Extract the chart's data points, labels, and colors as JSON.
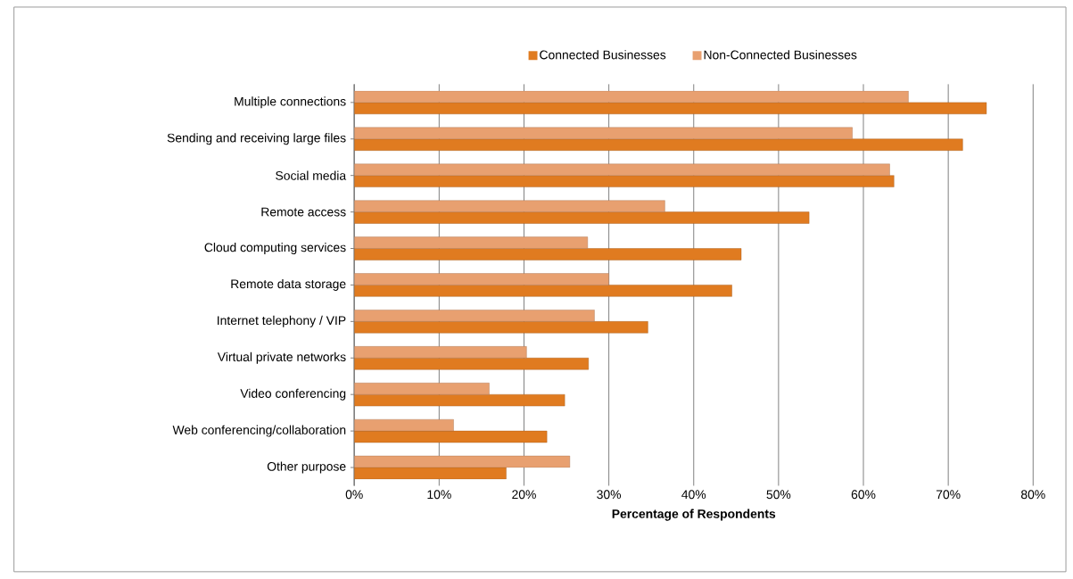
{
  "chart_data": {
    "type": "bar",
    "orientation": "horizontal",
    "categories": [
      "Multiple connections",
      "Sending and receiving large files",
      "Social media",
      "Remote access",
      "Cloud computing services",
      "Remote data storage",
      "Internet telephony / VIP",
      "Virtual private networks",
      "Video conferencing",
      "Web conferencing/collaboration",
      "Other purpose"
    ],
    "series": [
      {
        "name": "Connected Businesses",
        "color": "#e07b20",
        "values": [
          74.5,
          71.7,
          63.6,
          53.6,
          45.6,
          44.5,
          34.6,
          27.6,
          24.8,
          22.7,
          17.9
        ]
      },
      {
        "name": "Non-Connected Businesses",
        "color": "#e8a070",
        "values": [
          65.3,
          58.7,
          63.1,
          36.6,
          27.5,
          30.0,
          28.3,
          20.3,
          15.9,
          11.7,
          25.4
        ]
      }
    ],
    "xlabel": "Percentage of Respondents",
    "xlim": [
      0,
      80
    ],
    "xticks": [
      {
        "value": 0,
        "label": "0%"
      },
      {
        "value": 10,
        "label": "10%"
      },
      {
        "value": 20,
        "label": "20%"
      },
      {
        "value": 30,
        "label": "30%"
      },
      {
        "value": 40,
        "label": "40%"
      },
      {
        "value": 50,
        "label": "50%"
      },
      {
        "value": 60,
        "label": "60%"
      },
      {
        "value": 70,
        "label": "70%"
      },
      {
        "value": 80,
        "label": "80%"
      }
    ],
    "grid": "x",
    "legend": "top"
  }
}
